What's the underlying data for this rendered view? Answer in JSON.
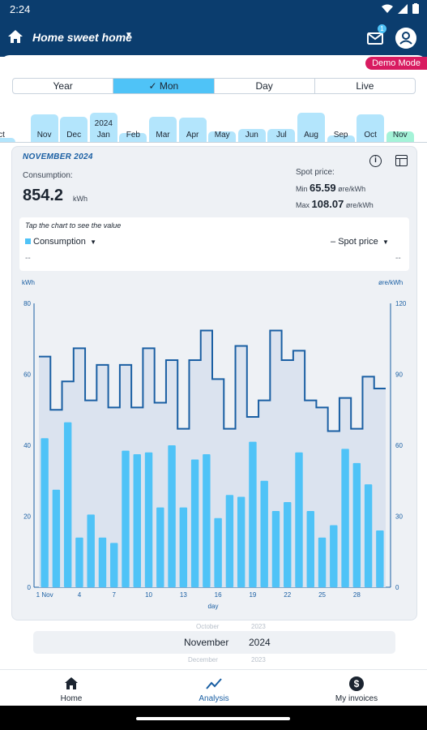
{
  "status_bar": {
    "time": "2:24"
  },
  "app_bar": {
    "site_name": "Home sweet home",
    "unread_count": "1"
  },
  "demo_mode_label": "Demo Mode",
  "tabs": [
    {
      "label": "Year",
      "active": false
    },
    {
      "label": "✓ Mon",
      "active": true
    },
    {
      "label": "Day",
      "active": false
    },
    {
      "label": "Live",
      "active": false
    }
  ],
  "month_selector": {
    "year_marker": "2024",
    "items": [
      {
        "label": "ct",
        "level": 0.12
      },
      {
        "label": "Nov",
        "level": 0.82
      },
      {
        "label": "Dec",
        "level": 0.74
      },
      {
        "label": "Jan",
        "level": 0.86
      },
      {
        "label": "Feb",
        "level": 0.26
      },
      {
        "label": "Mar",
        "level": 0.74
      },
      {
        "label": "Apr",
        "level": 0.72
      },
      {
        "label": "May",
        "level": 0.32
      },
      {
        "label": "Jun",
        "level": 0.38
      },
      {
        "label": "Jul",
        "level": 0.38
      },
      {
        "label": "Aug",
        "level": 0.86
      },
      {
        "label": "Sep",
        "level": 0.2
      },
      {
        "label": "Oct",
        "level": 0.8
      },
      {
        "label": "Nov",
        "level": 0.3,
        "current": true
      }
    ]
  },
  "summary": {
    "period": "NOVEMBER 2024",
    "consumption_label": "Consumption:",
    "consumption_value": "854.2",
    "consumption_unit": "kWh",
    "spot_label": "Spot price:",
    "min_label": "Min",
    "min_value": "65.59",
    "min_unit": "øre/kWh",
    "max_label": "Max",
    "max_value": "108.07",
    "max_unit": "øre/kWh"
  },
  "chart_header": {
    "tap_hint": "Tap the chart to see the value",
    "consumption_legend": "Consumption",
    "spot_legend": "Spot price",
    "left_value": "--",
    "right_value": "--"
  },
  "chart_data": {
    "type": "bar",
    "xlabel": "day",
    "x_tick_labels": [
      "1 Nov",
      "4",
      "7",
      "10",
      "13",
      "16",
      "19",
      "22",
      "25",
      "28"
    ],
    "y_left": {
      "unit": "kWh",
      "ticks": [
        "0",
        "20",
        "40",
        "60",
        "80"
      ],
      "range": [
        0,
        80
      ]
    },
    "y_right": {
      "unit": "øre/kWh",
      "ticks": [
        "0",
        "30",
        "60",
        "90",
        "120"
      ],
      "range": [
        0,
        120
      ]
    },
    "days": [
      1,
      2,
      3,
      4,
      5,
      6,
      7,
      8,
      9,
      10,
      11,
      12,
      13,
      14,
      15,
      16,
      17,
      18,
      19,
      20,
      21,
      22,
      23,
      24,
      25,
      26,
      27,
      28,
      29,
      30
    ],
    "series": [
      {
        "name": "Consumption",
        "type": "bar",
        "color": "#4fc3f7",
        "values": [
          42,
          27.5,
          46.5,
          14,
          20.5,
          14,
          12.5,
          38.5,
          37.5,
          38,
          22.5,
          40,
          22.5,
          36,
          37.5,
          19.5,
          26,
          25.5,
          41,
          30,
          21.5,
          24,
          38,
          21.5,
          14,
          17.5,
          39,
          35,
          29,
          16
        ]
      },
      {
        "name": "Spot price",
        "type": "step",
        "color": "#1a5fa3",
        "values": [
          97.5,
          75,
          87,
          101,
          79,
          94,
          76,
          94,
          76,
          101,
          78,
          96,
          67,
          96,
          108.5,
          88,
          67,
          102,
          72,
          79,
          108.5,
          96,
          100,
          79,
          76,
          66,
          80,
          67,
          89,
          84
        ]
      }
    ]
  },
  "period_picker": {
    "prev_month": "October",
    "prev_year": "2023",
    "month": "November",
    "year": "2024",
    "next_month": "December",
    "next_year": "2023"
  },
  "bottom_nav": [
    {
      "label": "Home",
      "active": false
    },
    {
      "label": "Analysis",
      "active": true
    },
    {
      "label": "My invoices",
      "active": false
    }
  ],
  "colors": {
    "header": "#0b3d6e",
    "accent": "#4fc3f7",
    "demo": "#d81b60",
    "spot_line": "#1a5fa3"
  }
}
